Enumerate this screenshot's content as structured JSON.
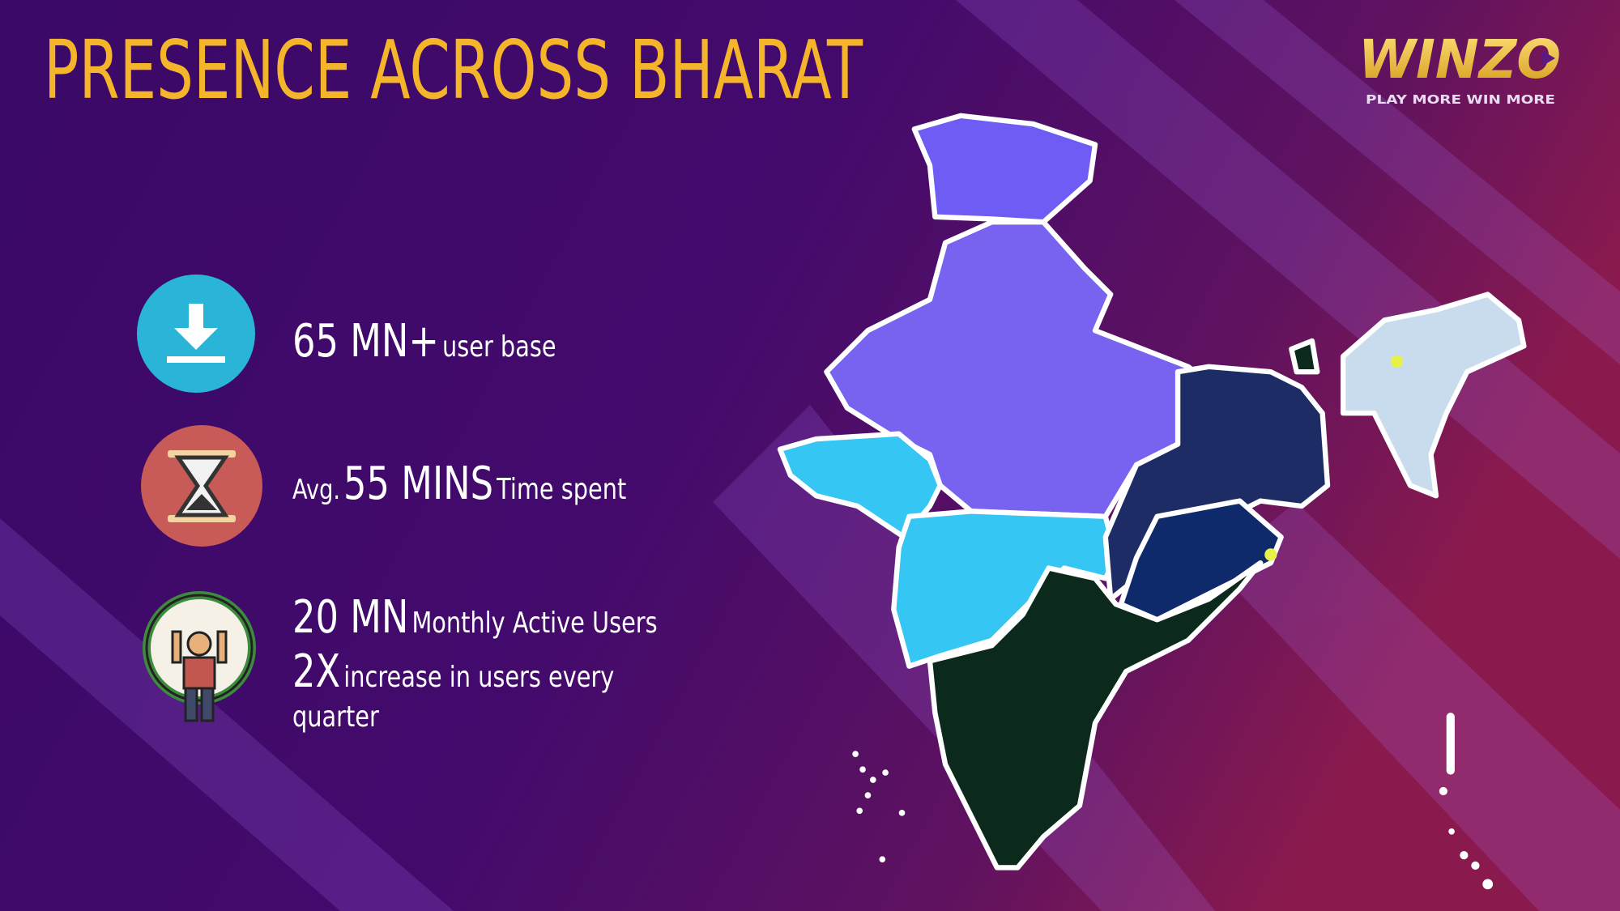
{
  "header": {
    "title": "PRESENCE ACROSS BHARAT",
    "logo": "WINZO",
    "tagline": "PLAY MORE WIN MORE"
  },
  "stats": [
    {
      "value": "65 MN+",
      "label": "user base"
    },
    {
      "prefix": "Avg.",
      "value": "55 MINS",
      "label": "Time spent"
    },
    {
      "value": "20 MN",
      "label": "Monthly Active Users",
      "value2": "2X",
      "label2": "increase in users every",
      "label3": "quarter"
    }
  ]
}
